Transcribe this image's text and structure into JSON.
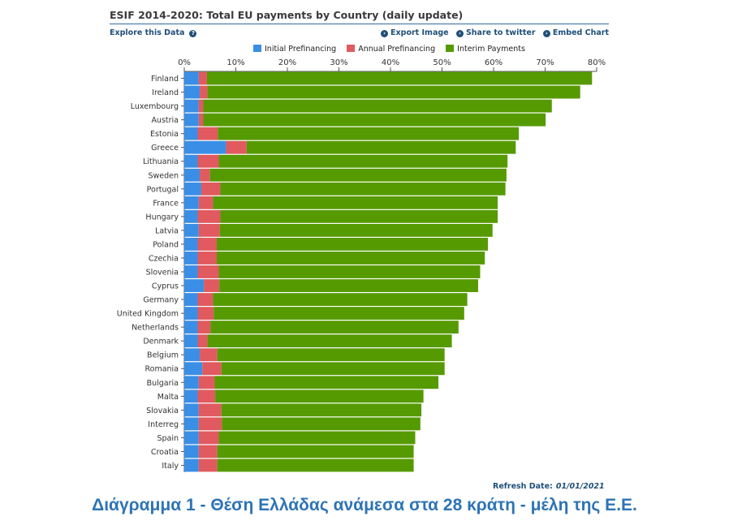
{
  "header": {
    "title": "ESIF 2014-2020: Total EU payments by Country (daily update)",
    "explore_label": "Explore this Data",
    "export_label": "Export Image",
    "share_label": "Share to twitter",
    "embed_label": "Embed Chart"
  },
  "footer": {
    "refresh_label": "Refresh Date:",
    "refresh_date": "01/01/2021",
    "caption": "Διάγραμμα 1 - Θέση Ελλάδας ανάμεσα στα 28 κράτη - μέλη της Ε.Ε."
  },
  "chart_data": {
    "type": "bar",
    "orientation": "horizontal",
    "stacked": true,
    "xlim": [
      0,
      80
    ],
    "x_ticks": [
      "0%",
      "10%",
      "20%",
      "30%",
      "40%",
      "50%",
      "60%",
      "70%",
      "80%"
    ],
    "grid": false,
    "legend_position": "top",
    "categories": [
      "Finland",
      "Ireland",
      "Luxembourg",
      "Austria",
      "Estonia",
      "Greece",
      "Lithuania",
      "Sweden",
      "Portugal",
      "France",
      "Hungary",
      "Latvia",
      "Poland",
      "Czechia",
      "Slovenia",
      "Cyprus",
      "Germany",
      "United Kingdom",
      "Netherlands",
      "Denmark",
      "Belgium",
      "Romania",
      "Bulgaria",
      "Malta",
      "Slovakia",
      "Interreg",
      "Spain",
      "Croatia",
      "Italy"
    ],
    "series": [
      {
        "name": "Initial Prefinancing",
        "color": "#3a8ee6",
        "values": [
          2.8,
          3.0,
          2.8,
          2.8,
          2.6,
          8.1,
          2.6,
          3.0,
          3.3,
          2.8,
          2.6,
          2.8,
          2.6,
          2.6,
          2.6,
          3.8,
          2.6,
          2.6,
          2.6,
          2.6,
          3.0,
          3.5,
          2.8,
          2.6,
          2.8,
          2.8,
          2.8,
          2.8,
          2.8
        ]
      },
      {
        "name": "Annual Prefinancing",
        "color": "#e05a5f",
        "values": [
          1.6,
          1.5,
          0.9,
          0.9,
          3.9,
          4.0,
          4.1,
          2.0,
          3.7,
          2.8,
          4.4,
          4.1,
          3.7,
          3.7,
          4.1,
          3.0,
          3.0,
          3.1,
          2.5,
          1.9,
          3.4,
          3.7,
          3.1,
          3.4,
          4.4,
          4.5,
          3.9,
          3.6,
          3.6
        ]
      },
      {
        "name": "Interim Payments",
        "color": "#559a00",
        "values": [
          74.7,
          72.3,
          67.6,
          66.4,
          58.4,
          52.2,
          56.0,
          57.5,
          55.3,
          55.2,
          53.8,
          52.9,
          52.6,
          52.0,
          50.7,
          50.2,
          49.3,
          48.6,
          48.1,
          47.4,
          44.1,
          43.3,
          43.4,
          40.4,
          38.8,
          38.5,
          38.1,
          38.1,
          38.1
        ]
      }
    ]
  }
}
